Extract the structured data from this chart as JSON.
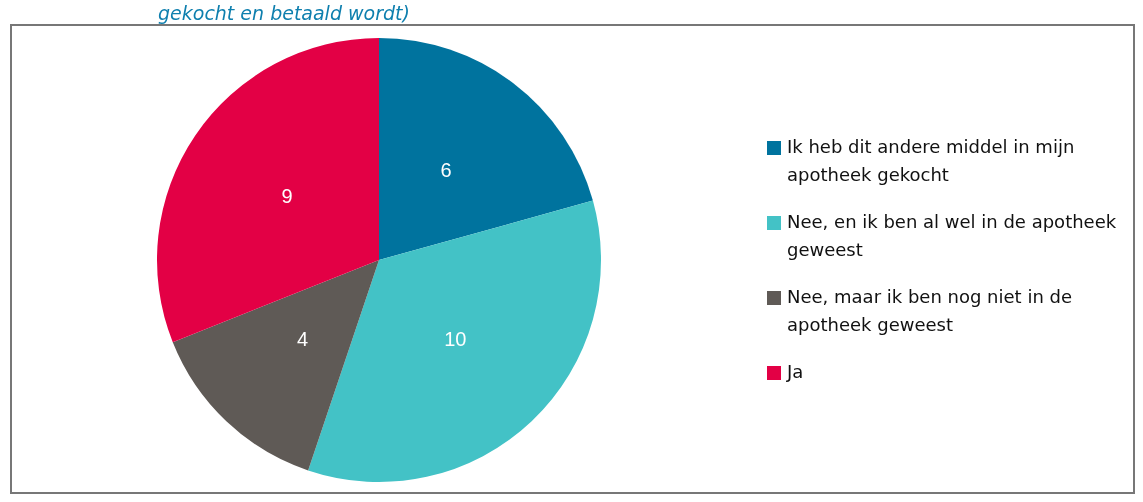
{
  "chart_data": {
    "type": "pie",
    "title": "gekocht en betaald wordt)",
    "categories": [
      "Ik heb dit andere middel in mijn apotheek gekocht",
      "Nee, en ik ben al wel in de apotheek geweest",
      "Nee, maar ik ben nog niet in de apotheek geweest",
      "Ja"
    ],
    "values": [
      6,
      10,
      4,
      9
    ],
    "colors": [
      "#00739e",
      "#43c2c6",
      "#5f5a56",
      "#e30045"
    ],
    "data_labels": true,
    "legend": "right"
  }
}
